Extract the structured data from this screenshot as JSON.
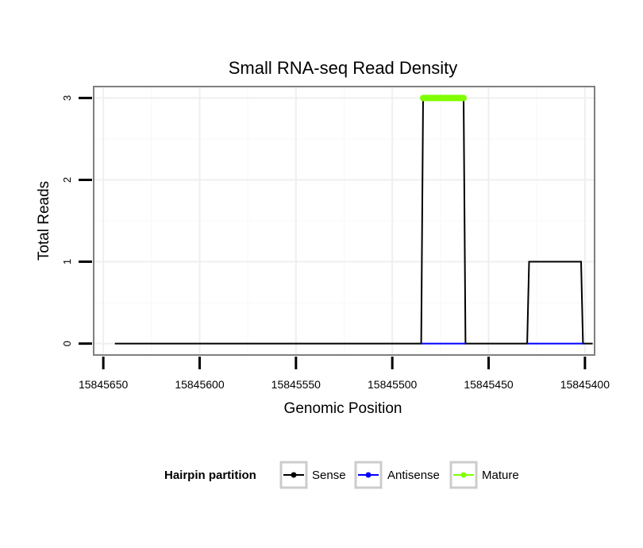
{
  "chart_data": {
    "type": "line",
    "title": "Small RNA-seq Read Density",
    "xlabel": "Genomic Position",
    "ylabel": "Total Reads",
    "x_reversed": true,
    "xlim": [
      15845655,
      15845395
    ],
    "ylim": [
      -0.14,
      3.14
    ],
    "x_ticks": [
      15845650,
      15845600,
      15845550,
      15845500,
      15845450,
      15845400
    ],
    "x_tick_labels": [
      "15845650",
      "15845600",
      "15845550",
      "15845500",
      "15845450",
      "15845400"
    ],
    "y_ticks": [
      0,
      1,
      2,
      3
    ],
    "y_tick_labels": [
      "0",
      "1",
      "2",
      "3"
    ],
    "grid": true,
    "legend": {
      "title": "Hairpin partition",
      "position": "bottom",
      "entries": [
        "Sense",
        "Antisense",
        "Mature"
      ]
    },
    "series": [
      {
        "name": "Sense",
        "color": "#000000",
        "x": [
          15845644,
          15845485,
          15845484,
          15845463,
          15845462,
          15845430,
          15845429,
          15845402,
          15845401,
          15845396
        ],
        "values": [
          0,
          0,
          3,
          3,
          0,
          0,
          1,
          1,
          0,
          0
        ]
      },
      {
        "name": "Antisense",
        "color": "#0000ff",
        "x": [
          15845485,
          15845462
        ],
        "values": [
          0,
          0
        ],
        "extra_segments": [
          {
            "x": [
              15845430,
              15845401
            ],
            "values": [
              0,
              0
            ]
          }
        ]
      },
      {
        "name": "Mature",
        "color": "#7fff00",
        "x": [
          15845484,
          15845463
        ],
        "values": [
          3,
          3
        ]
      }
    ]
  }
}
